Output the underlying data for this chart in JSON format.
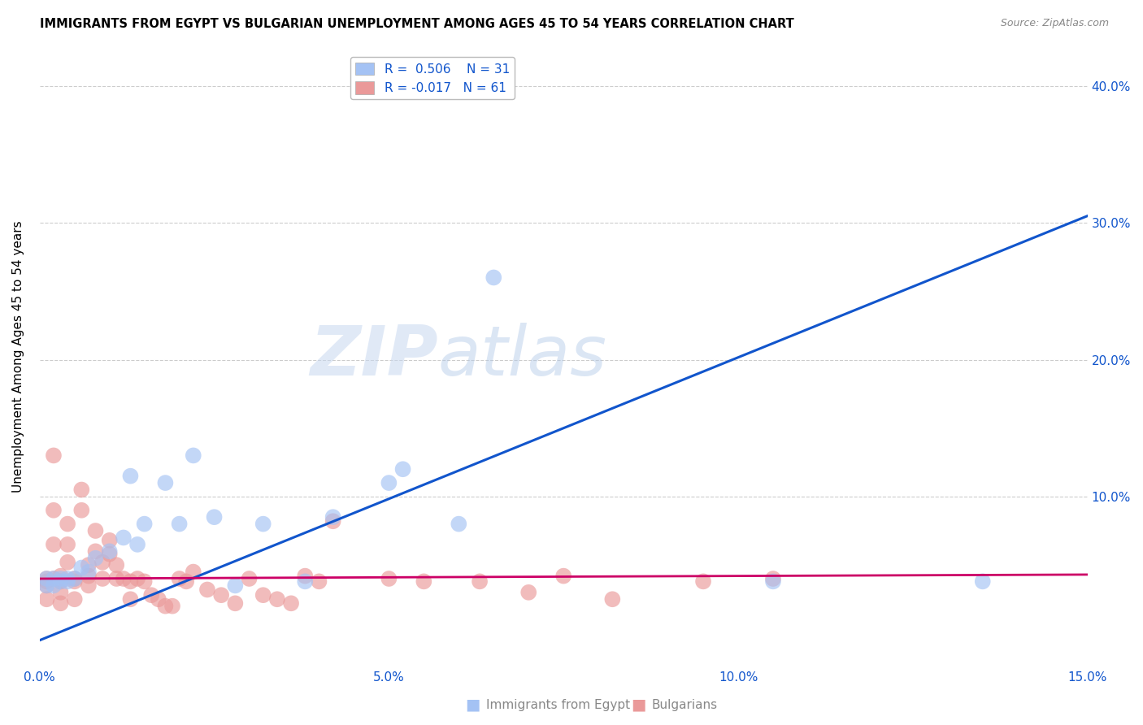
{
  "title": "IMMIGRANTS FROM EGYPT VS BULGARIAN UNEMPLOYMENT AMONG AGES 45 TO 54 YEARS CORRELATION CHART",
  "source": "Source: ZipAtlas.com",
  "ylabel": "Unemployment Among Ages 45 to 54 years",
  "xlabel_blue": "Immigrants from Egypt",
  "xlabel_pink": "Bulgarians",
  "xlim": [
    0.0,
    0.15
  ],
  "ylim": [
    -0.025,
    0.43
  ],
  "xticks": [
    0.0,
    0.05,
    0.1,
    0.15
  ],
  "xtick_labels": [
    "0.0%",
    "5.0%",
    "10.0%",
    "15.0%"
  ],
  "yticks": [
    0.0,
    0.1,
    0.2,
    0.3,
    0.4
  ],
  "ytick_labels_right": [
    "",
    "10.0%",
    "20.0%",
    "30.0%",
    "40.0%"
  ],
  "blue_R": "0.506",
  "blue_N": "31",
  "pink_R": "-0.017",
  "pink_N": "61",
  "blue_color": "#a4c2f4",
  "pink_color": "#ea9999",
  "blue_line_color": "#1155cc",
  "pink_line_color": "#cc0066",
  "watermark_zip": "ZIP",
  "watermark_atlas": "atlas",
  "blue_line_x": [
    0.0,
    0.15
  ],
  "blue_line_y": [
    -0.005,
    0.305
  ],
  "pink_line_x": [
    0.0,
    0.15
  ],
  "pink_line_y": [
    0.04,
    0.043
  ],
  "blue_scatter_x": [
    0.001,
    0.001,
    0.002,
    0.002,
    0.003,
    0.003,
    0.004,
    0.004,
    0.005,
    0.006,
    0.007,
    0.008,
    0.01,
    0.012,
    0.013,
    0.014,
    0.015,
    0.018,
    0.02,
    0.022,
    0.025,
    0.028,
    0.032,
    0.038,
    0.042,
    0.05,
    0.052,
    0.06,
    0.065,
    0.105,
    0.135
  ],
  "blue_scatter_y": [
    0.04,
    0.035,
    0.04,
    0.035,
    0.04,
    0.038,
    0.038,
    0.04,
    0.04,
    0.048,
    0.045,
    0.055,
    0.06,
    0.07,
    0.115,
    0.065,
    0.08,
    0.11,
    0.08,
    0.13,
    0.085,
    0.035,
    0.08,
    0.038,
    0.085,
    0.11,
    0.12,
    0.08,
    0.26,
    0.038,
    0.038
  ],
  "pink_scatter_x": [
    0.001,
    0.001,
    0.001,
    0.001,
    0.002,
    0.002,
    0.002,
    0.002,
    0.003,
    0.003,
    0.003,
    0.003,
    0.004,
    0.004,
    0.004,
    0.005,
    0.005,
    0.005,
    0.006,
    0.006,
    0.007,
    0.007,
    0.007,
    0.008,
    0.008,
    0.009,
    0.009,
    0.01,
    0.01,
    0.011,
    0.011,
    0.012,
    0.013,
    0.013,
    0.014,
    0.015,
    0.016,
    0.017,
    0.018,
    0.019,
    0.02,
    0.021,
    0.022,
    0.024,
    0.026,
    0.028,
    0.03,
    0.032,
    0.034,
    0.036,
    0.038,
    0.04,
    0.042,
    0.05,
    0.055,
    0.063,
    0.07,
    0.075,
    0.082,
    0.095,
    0.105
  ],
  "pink_scatter_y": [
    0.04,
    0.038,
    0.035,
    0.025,
    0.13,
    0.09,
    0.065,
    0.04,
    0.042,
    0.038,
    0.03,
    0.022,
    0.08,
    0.065,
    0.052,
    0.04,
    0.038,
    0.025,
    0.105,
    0.09,
    0.05,
    0.042,
    0.035,
    0.075,
    0.06,
    0.052,
    0.04,
    0.068,
    0.058,
    0.05,
    0.04,
    0.04,
    0.038,
    0.025,
    0.04,
    0.038,
    0.028,
    0.025,
    0.02,
    0.02,
    0.04,
    0.038,
    0.045,
    0.032,
    0.028,
    0.022,
    0.04,
    0.028,
    0.025,
    0.022,
    0.042,
    0.038,
    0.082,
    0.04,
    0.038,
    0.038,
    0.03,
    0.042,
    0.025,
    0.038,
    0.04
  ]
}
